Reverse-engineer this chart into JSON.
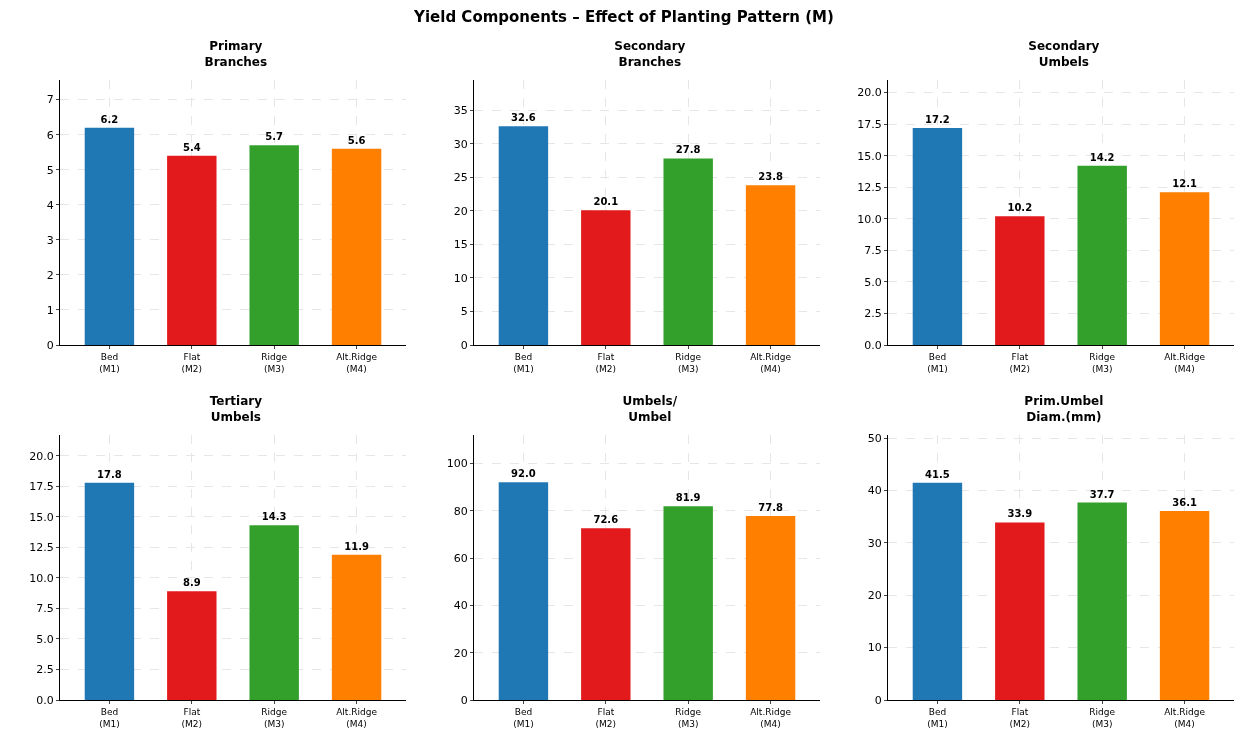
{
  "chart_data": [
    {
      "type": "other",
      "title": "Yield Components – Effect of Planting Pattern (M)"
    },
    {
      "type": "bar",
      "title": "Primary\nBranches",
      "categories": [
        "Bed\n(M1)",
        "Flat\n(M2)",
        "Ridge\n(M3)",
        "Alt.Ridge\n(M4)"
      ],
      "values": [
        6.2,
        5.4,
        5.7,
        5.6
      ],
      "value_labels": [
        "6.2",
        "5.4",
        "5.7",
        "5.6"
      ],
      "colors": [
        "#1f77b4",
        "#e31a1c",
        "#33a02c",
        "#ff7f00"
      ],
      "ylim": [
        0,
        7.56
      ],
      "yticks": [
        0,
        1,
        2,
        3,
        4,
        5,
        6,
        7
      ],
      "grid": true
    },
    {
      "type": "bar",
      "title": "Secondary\nBranches",
      "categories": [
        "Bed\n(M1)",
        "Flat\n(M2)",
        "Ridge\n(M3)",
        "Alt.Ridge\n(M4)"
      ],
      "values": [
        32.6,
        20.1,
        27.8,
        23.8
      ],
      "value_labels": [
        "32.6",
        "20.1",
        "27.8",
        "23.8"
      ],
      "colors": [
        "#1f77b4",
        "#e31a1c",
        "#33a02c",
        "#ff7f00"
      ],
      "ylim": [
        0,
        39.5
      ],
      "yticks": [
        0,
        5,
        10,
        15,
        20,
        25,
        30,
        35
      ],
      "grid": true
    },
    {
      "type": "bar",
      "title": "Secondary\nUmbels",
      "categories": [
        "Bed\n(M1)",
        "Flat\n(M2)",
        "Ridge\n(M3)",
        "Alt.Ridge\n(M4)"
      ],
      "values": [
        17.2,
        10.2,
        14.2,
        12.1
      ],
      "value_labels": [
        "17.2",
        "10.2",
        "14.2",
        "12.1"
      ],
      "colors": [
        "#1f77b4",
        "#e31a1c",
        "#33a02c",
        "#ff7f00"
      ],
      "ylim": [
        0,
        21.0
      ],
      "yticks": [
        {
          "value": 0,
          "label": "0.0"
        },
        {
          "value": 2.5,
          "label": "2.5"
        },
        {
          "value": 5,
          "label": "5.0"
        },
        {
          "value": 7.5,
          "label": "7.5"
        },
        {
          "value": 10,
          "label": "10.0"
        },
        {
          "value": 12.5,
          "label": "12.5"
        },
        {
          "value": 15,
          "label": "15.0"
        },
        {
          "value": 17.5,
          "label": "17.5"
        },
        {
          "value": 20,
          "label": "20.0"
        }
      ],
      "grid": true
    },
    {
      "type": "bar",
      "title": "Tertiary\nUmbels",
      "categories": [
        "Bed\n(M1)",
        "Flat\n(M2)",
        "Ridge\n(M3)",
        "Alt.Ridge\n(M4)"
      ],
      "values": [
        17.8,
        8.9,
        14.3,
        11.9
      ],
      "value_labels": [
        "17.8",
        "8.9",
        "14.3",
        "11.9"
      ],
      "colors": [
        "#1f77b4",
        "#e31a1c",
        "#33a02c",
        "#ff7f00"
      ],
      "ylim": [
        0,
        21.7
      ],
      "yticks": [
        {
          "value": 0,
          "label": "0.0"
        },
        {
          "value": 2.5,
          "label": "2.5"
        },
        {
          "value": 5,
          "label": "5.0"
        },
        {
          "value": 7.5,
          "label": "7.5"
        },
        {
          "value": 10,
          "label": "10.0"
        },
        {
          "value": 12.5,
          "label": "12.5"
        },
        {
          "value": 15,
          "label": "15.0"
        },
        {
          "value": 17.5,
          "label": "17.5"
        },
        {
          "value": 20,
          "label": "20.0"
        }
      ],
      "grid": true
    },
    {
      "type": "bar",
      "title": "Umbels/\nUmbel",
      "categories": [
        "Bed\n(M1)",
        "Flat\n(M2)",
        "Ridge\n(M3)",
        "Alt.Ridge\n(M4)"
      ],
      "values": [
        92.0,
        72.6,
        81.9,
        77.8
      ],
      "value_labels": [
        "92.0",
        "72.6",
        "81.9",
        "77.8"
      ],
      "colors": [
        "#1f77b4",
        "#e31a1c",
        "#33a02c",
        "#ff7f00"
      ],
      "ylim": [
        0,
        112
      ],
      "yticks": [
        0,
        20,
        40,
        60,
        80,
        100
      ],
      "grid": true
    },
    {
      "type": "bar",
      "title": "Prim.Umbel\nDiam.(mm)",
      "categories": [
        "Bed\n(M1)",
        "Flat\n(M2)",
        "Ridge\n(M3)",
        "Alt.Ridge\n(M4)"
      ],
      "values": [
        41.5,
        33.9,
        37.7,
        36.1
      ],
      "value_labels": [
        "41.5",
        "33.9",
        "37.7",
        "36.1"
      ],
      "colors": [
        "#1f77b4",
        "#e31a1c",
        "#33a02c",
        "#ff7f00"
      ],
      "ylim": [
        0,
        50.6
      ],
      "yticks": [
        0,
        10,
        20,
        30,
        40,
        50
      ],
      "grid": true
    }
  ]
}
